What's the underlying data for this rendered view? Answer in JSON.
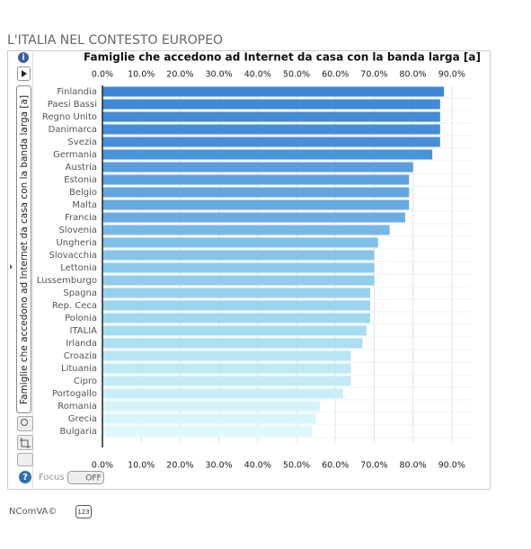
{
  "page": {
    "heading": "L'ITALIA NEL CONTESTO EUROPEO",
    "side_label": "Famiglie che accedono ad Internet da casa con la banda larga [a]",
    "focus": "Focus",
    "toggle": "OFF",
    "credit": "NComVA©",
    "badge": "123"
  },
  "chart_data": {
    "type": "hbar",
    "title": "Famiglie che accedono ad Internet da casa con la banda larga [a]",
    "categories": [
      "Finlandia",
      "Paesi Bassi",
      "Regno Unito",
      "Danimarca",
      "Svezia",
      "Germania",
      "Austria",
      "Estonia",
      "Belgio",
      "Malta",
      "Francia",
      "Slovenia",
      "Ungheria",
      "Slovacchia",
      "Lettonia",
      "Lussemburgo",
      "Spagna",
      "Rep. Ceca",
      "Polonia",
      "ITALIA",
      "Irlanda",
      "Croazia",
      "Lituania",
      "Cipro",
      "Portogallo",
      "Romania",
      "Grecia",
      "Bulgaria"
    ],
    "values": [
      88,
      87,
      87,
      87,
      87,
      85,
      80,
      79,
      79,
      79,
      78,
      74,
      71,
      70,
      70,
      70,
      69,
      69,
      69,
      68,
      67,
      64,
      64,
      64,
      62,
      56,
      55,
      54
    ],
    "colors": [
      "#3f87d6",
      "#4189d6",
      "#438bd7",
      "#458dd8",
      "#478fd8",
      "#4a92d9",
      "#5a9edd",
      "#5ea2de",
      "#62a5df",
      "#66a8e0",
      "#6aace2",
      "#78b8e6",
      "#80bfe8",
      "#86c4ea",
      "#8bc8eb",
      "#90ccec",
      "#96d0ee",
      "#9bd4ef",
      "#a0d8f0",
      "#a6dcf1",
      "#acdff2",
      "#b6e6f4",
      "#bce9f5",
      "#c2ecf6",
      "#c8eff7",
      "#d2f4f9",
      "#d7f6fa",
      "#dcf8fb"
    ],
    "xlim": [
      0,
      95
    ],
    "xticks": [
      {
        "value": 0,
        "label": "0.0%"
      },
      {
        "value": 10,
        "label": "10.0%"
      },
      {
        "value": 20,
        "label": "20.0%"
      },
      {
        "value": 30,
        "label": "30.0%"
      },
      {
        "value": 40,
        "label": "40.0%"
      },
      {
        "value": 50,
        "label": "50.0%"
      },
      {
        "value": 60,
        "label": "60.0%"
      },
      {
        "value": 70,
        "label": "70.0%"
      },
      {
        "value": 80,
        "label": "80.0%"
      },
      {
        "value": 90,
        "label": "90.0%"
      }
    ],
    "grid": true
  }
}
